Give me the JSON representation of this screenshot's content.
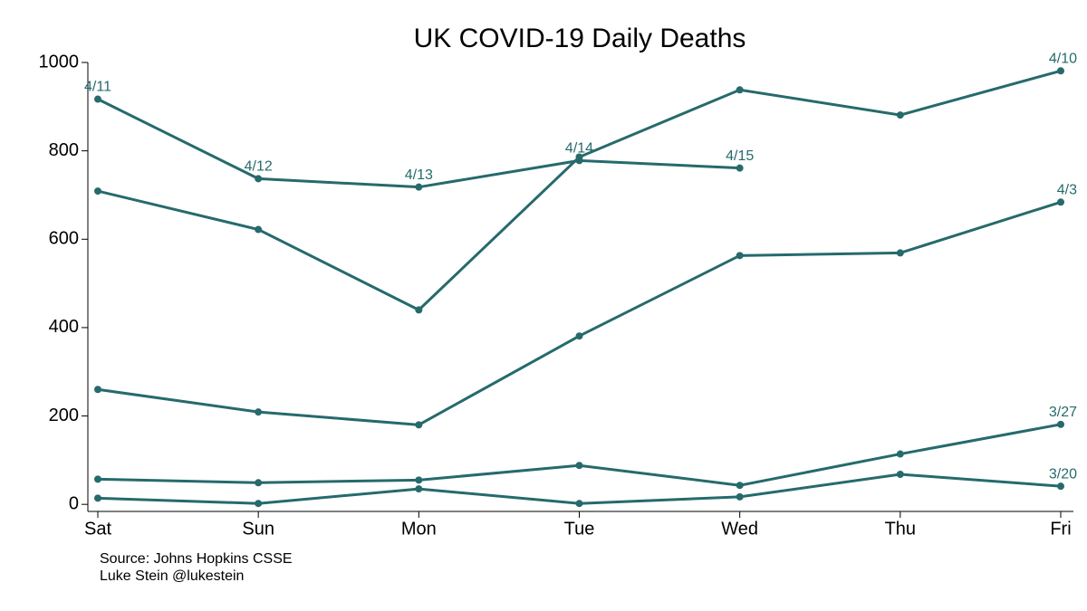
{
  "chart_data": {
    "type": "line",
    "title": "UK COVID-19 Daily Deaths",
    "categories": [
      "Sat",
      "Sun",
      "Mon",
      "Tue",
      "Wed",
      "Thu",
      "Fri"
    ],
    "ylim": [
      -16,
      1000
    ],
    "yticks": [
      0,
      200,
      400,
      600,
      800,
      1000
    ],
    "color": "#266a6c",
    "series": [
      {
        "values": [
          709,
          622,
          440,
          786,
          938,
          881,
          981
        ],
        "labels": [
          null,
          null,
          null,
          null,
          null,
          null,
          "4/10"
        ]
      },
      {
        "values": [
          917,
          737,
          718,
          778,
          761,
          null,
          null
        ],
        "labels": [
          "4/11",
          "4/12",
          "4/13",
          "4/14",
          "4/15",
          null,
          null
        ]
      },
      {
        "values": [
          260,
          209,
          180,
          381,
          563,
          569,
          684
        ],
        "labels": [
          null,
          null,
          null,
          null,
          null,
          null,
          "4/3"
        ]
      },
      {
        "values": [
          57,
          49,
          55,
          88,
          43,
          114,
          181
        ],
        "labels": [
          null,
          null,
          null,
          null,
          null,
          null,
          "3/27"
        ]
      },
      {
        "values": [
          14,
          2,
          35,
          2,
          17,
          68,
          41
        ],
        "labels": [
          null,
          null,
          null,
          null,
          null,
          null,
          "3/20"
        ]
      }
    ],
    "notes": [
      "Source: Johns Hopkins CSSE",
      "Luke Stein @lukestein"
    ]
  }
}
